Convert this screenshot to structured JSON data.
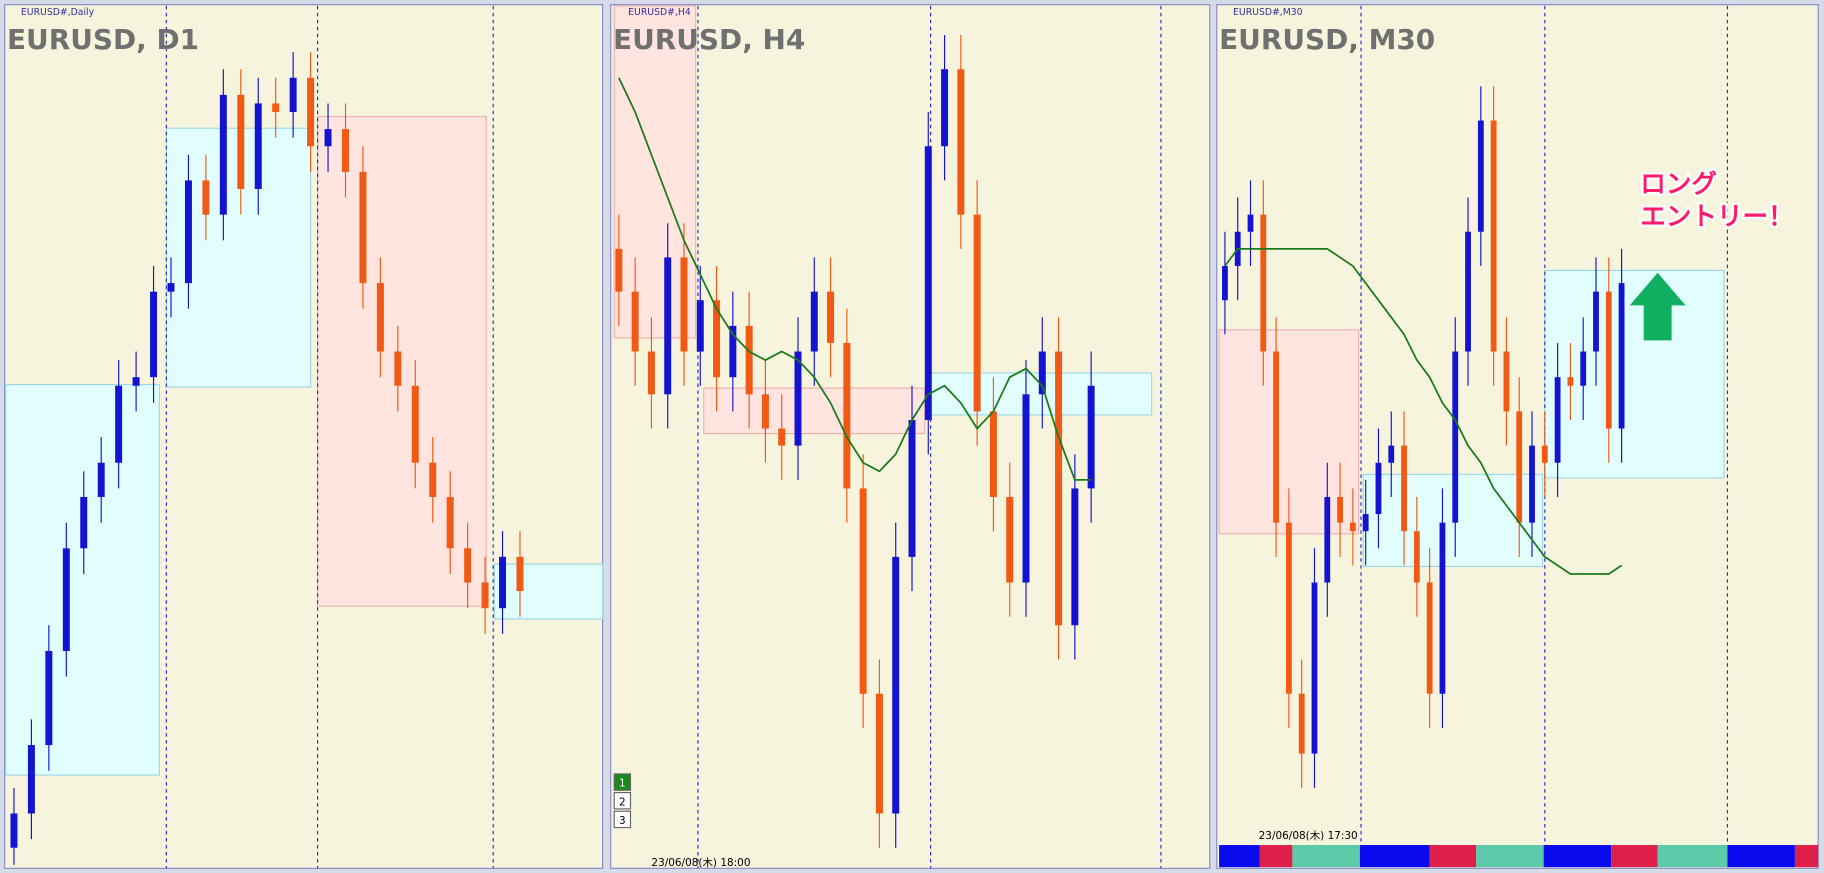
{
  "chart_data": [
    {
      "type": "candlestick",
      "tag": "EURUSD#,Daily",
      "title": "EURUSD, D1",
      "ylim": [
        0,
        100
      ],
      "open": [
        2,
        6,
        14,
        25,
        37,
        43,
        47,
        56,
        57,
        67,
        68,
        80,
        76,
        90,
        79,
        89,
        88,
        92,
        84,
        86,
        81,
        68,
        60,
        56,
        47,
        43,
        37,
        33,
        30,
        36
      ],
      "high": [
        9,
        17,
        28,
        40,
        46,
        50,
        59,
        60,
        70,
        71,
        83,
        83,
        93,
        93,
        92,
        92,
        95,
        95,
        89,
        89,
        84,
        71,
        63,
        59,
        50,
        46,
        40,
        36,
        39,
        39
      ],
      "low": [
        0,
        3,
        11,
        22,
        34,
        40,
        44,
        53,
        54,
        64,
        65,
        73,
        73,
        76,
        76,
        85,
        85,
        81,
        81,
        78,
        65,
        57,
        53,
        44,
        40,
        34,
        30,
        27,
        27,
        29
      ],
      "close": [
        6,
        14,
        25,
        37,
        43,
        47,
        56,
        57,
        67,
        68,
        80,
        76,
        90,
        79,
        89,
        88,
        92,
        84,
        86,
        81,
        68,
        60,
        56,
        47,
        43,
        37,
        33,
        30,
        36,
        32
      ]
    },
    {
      "type": "candlestick",
      "tag": "EURUSD#,H4",
      "title": "EURUSD, H4",
      "ylim": [
        0,
        100
      ],
      "open": [
        72,
        67,
        60,
        55,
        71,
        60,
        66,
        57,
        63,
        55,
        51,
        49,
        60,
        67,
        61,
        44,
        20,
        6,
        36,
        52,
        84,
        93,
        76,
        53,
        43,
        33,
        55,
        60,
        28,
        44
      ],
      "high": [
        76,
        71,
        64,
        75,
        75,
        70,
        70,
        67,
        67,
        59,
        55,
        64,
        71,
        71,
        65,
        48,
        24,
        40,
        56,
        88,
        97,
        97,
        80,
        57,
        47,
        59,
        64,
        64,
        48,
        60
      ],
      "low": [
        63,
        56,
        51,
        51,
        56,
        56,
        53,
        53,
        51,
        47,
        45,
        45,
        56,
        57,
        40,
        16,
        2,
        2,
        32,
        48,
        80,
        72,
        49,
        39,
        29,
        29,
        51,
        24,
        24,
        40
      ],
      "close": [
        67,
        60,
        55,
        71,
        60,
        66,
        57,
        63,
        55,
        51,
        49,
        60,
        67,
        61,
        44,
        20,
        6,
        36,
        52,
        84,
        93,
        76,
        53,
        43,
        33,
        55,
        60,
        28,
        44,
        56
      ],
      "ma": [
        92,
        88,
        83,
        78,
        73,
        69,
        65,
        62,
        60,
        59,
        60,
        59,
        57,
        54,
        50,
        47,
        46,
        48,
        52,
        55,
        56,
        54,
        51,
        53,
        57,
        58,
        56,
        50,
        45,
        45
      ],
      "buttons": [
        "1",
        "2",
        "3"
      ],
      "timestamp": "23/06/08(木) 18:00"
    },
    {
      "type": "candlestick",
      "tag": "EURUSD#,M30",
      "title": "EURUSD, M30",
      "ylim": [
        0,
        100
      ],
      "open": [
        66,
        70,
        74,
        76,
        60,
        40,
        20,
        13,
        33,
        43,
        40,
        39,
        41,
        47,
        49,
        39,
        33,
        20,
        40,
        60,
        74,
        87,
        60,
        53,
        40,
        49,
        47,
        57,
        56,
        60,
        67,
        51
      ],
      "high": [
        74,
        78,
        80,
        80,
        64,
        44,
        24,
        37,
        47,
        47,
        44,
        45,
        51,
        53,
        53,
        43,
        37,
        44,
        64,
        78,
        91,
        91,
        64,
        57,
        53,
        53,
        61,
        61,
        64,
        71,
        71,
        72
      ],
      "low": [
        62,
        66,
        70,
        56,
        36,
        16,
        9,
        9,
        29,
        36,
        35,
        35,
        37,
        43,
        35,
        29,
        16,
        16,
        36,
        56,
        70,
        56,
        49,
        36,
        36,
        43,
        43,
        52,
        52,
        56,
        47,
        47
      ],
      "close": [
        70,
        74,
        76,
        60,
        40,
        20,
        13,
        33,
        43,
        40,
        39,
        41,
        47,
        49,
        39,
        33,
        20,
        40,
        60,
        74,
        87,
        60,
        53,
        40,
        49,
        47,
        57,
        56,
        60,
        67,
        51,
        68
      ],
      "ma": [
        70,
        72,
        72,
        72,
        72,
        72,
        72,
        72,
        72,
        71,
        70,
        68,
        66,
        64,
        62,
        59,
        57,
        54,
        52,
        49,
        47,
        44,
        42,
        40,
        38,
        36,
        35,
        34,
        34,
        34,
        34,
        35
      ],
      "annotations": [
        "ロング",
        "エントリー！"
      ],
      "timestamp": "23/06/08(木) 17:30"
    }
  ]
}
